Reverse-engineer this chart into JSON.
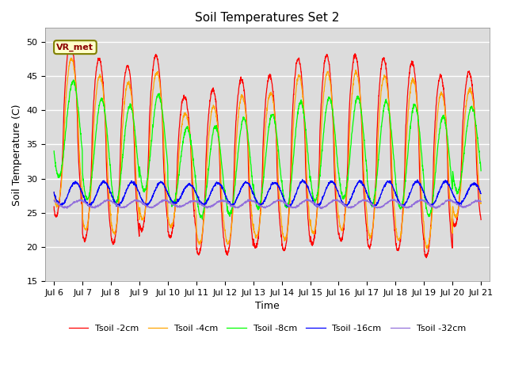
{
  "title": "Soil Temperatures Set 2",
  "xlabel": "Time",
  "ylabel": "Soil Temperature (C)",
  "ylim": [
    15,
    52
  ],
  "yticks": [
    15,
    20,
    25,
    30,
    35,
    40,
    45,
    50
  ],
  "annotation_text": "VR_met",
  "series_colors": [
    "red",
    "orange",
    "lime",
    "blue",
    "mediumpurple"
  ],
  "series_labels": [
    "Tsoil -2cm",
    "Tsoil -4cm",
    "Tsoil -8cm",
    "Tsoil -16cm",
    "Tsoil -32cm"
  ],
  "bg_color": "#dcdcdc",
  "xticklabels": [
    "Jul 6",
    "Jul 7",
    "Jul 8",
    "Jul 9",
    "Jul 10",
    "Jul 11",
    "Jul 12",
    "Jul 13",
    "Jul 14",
    "Jul 15",
    "Jul 16",
    "Jul 17",
    "Jul 18",
    "Jul 19",
    "Jul 20",
    "Jul 21"
  ],
  "n_days": 15,
  "start_day": 6,
  "amp_2cm": [
    12.5,
    12.5,
    12.0,
    12.5,
    11.0,
    6.0,
    7.5,
    8.5,
    13.0,
    13.0,
    12.5,
    12.5,
    12.5,
    10.5,
    10.5
  ],
  "peak_2cm": [
    50,
    47.5,
    46.5,
    48.0,
    42.0,
    43.0,
    44.5,
    45.0,
    47.5,
    48.0,
    48.0,
    47.5,
    47.0,
    45.0,
    45.5
  ],
  "trough_2cm": [
    24.5,
    21.0,
    20.5,
    22.5,
    21.5,
    19.0,
    19.0,
    20.0,
    19.5,
    20.5,
    21.0,
    20.0,
    19.5,
    18.5,
    23.0
  ]
}
